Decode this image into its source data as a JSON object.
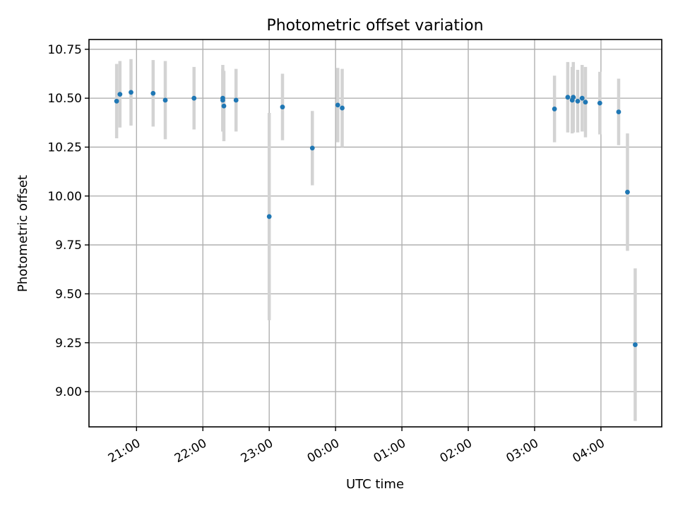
{
  "chart_data": {
    "type": "scatter",
    "title": "Photometric offset variation",
    "xlabel": "UTC time",
    "ylabel": "Photometric offset",
    "xlim": [
      "20:17",
      "04:55"
    ],
    "ylim": [
      8.82,
      10.8
    ],
    "grid": true,
    "x_ticks": [
      "21:00",
      "22:00",
      "23:00",
      "00:00",
      "01:00",
      "02:00",
      "03:00",
      "04:00"
    ],
    "y_ticks": [
      "10.75",
      "10.50",
      "10.25",
      "10.00",
      "9.75",
      "9.50",
      "9.25",
      "9.00"
    ],
    "colors": {
      "point": "#1f77b4",
      "errorbar": "#d3d3d3"
    },
    "series": [
      {
        "points": [
          {
            "time": "20:42",
            "y": 10.485,
            "err": 0.19
          },
          {
            "time": "20:45",
            "y": 10.52,
            "err": 0.17
          },
          {
            "time": "20:55",
            "y": 10.53,
            "err": 0.17
          },
          {
            "time": "21:15",
            "y": 10.525,
            "err": 0.17
          },
          {
            "time": "21:26",
            "y": 10.49,
            "err": 0.2
          },
          {
            "time": "21:52",
            "y": 10.5,
            "err": 0.16
          },
          {
            "time": "22:18",
            "y": 10.5,
            "err": 0.17
          },
          {
            "time": "22:18",
            "y": 10.49,
            "err": 0.16
          },
          {
            "time": "22:19",
            "y": 10.46,
            "err": 0.18
          },
          {
            "time": "22:30",
            "y": 10.49,
            "err": 0.16
          },
          {
            "time": "23:00",
            "y": 9.895,
            "err": 0.53
          },
          {
            "time": "23:12",
            "y": 10.455,
            "err": 0.17
          },
          {
            "time": "23:39",
            "y": 10.245,
            "err": 0.19
          },
          {
            "time": "00:02",
            "y": 10.465,
            "err": 0.19
          },
          {
            "time": "00:06",
            "y": 10.45,
            "err": 0.2
          },
          {
            "time": "03:18",
            "y": 10.445,
            "err": 0.17
          },
          {
            "time": "03:30",
            "y": 10.505,
            "err": 0.18
          },
          {
            "time": "03:34",
            "y": 10.49,
            "err": 0.17
          },
          {
            "time": "03:35",
            "y": 10.505,
            "err": 0.18
          },
          {
            "time": "03:39",
            "y": 10.485,
            "err": 0.16
          },
          {
            "time": "03:43",
            "y": 10.5,
            "err": 0.17
          },
          {
            "time": "03:46",
            "y": 10.48,
            "err": 0.18
          },
          {
            "time": "03:59",
            "y": 10.475,
            "err": 0.16
          },
          {
            "time": "04:16",
            "y": 10.43,
            "err": 0.17
          },
          {
            "time": "04:24",
            "y": 10.02,
            "err": 0.3
          },
          {
            "time": "04:31",
            "y": 9.24,
            "err": 0.39
          }
        ]
      }
    ]
  }
}
